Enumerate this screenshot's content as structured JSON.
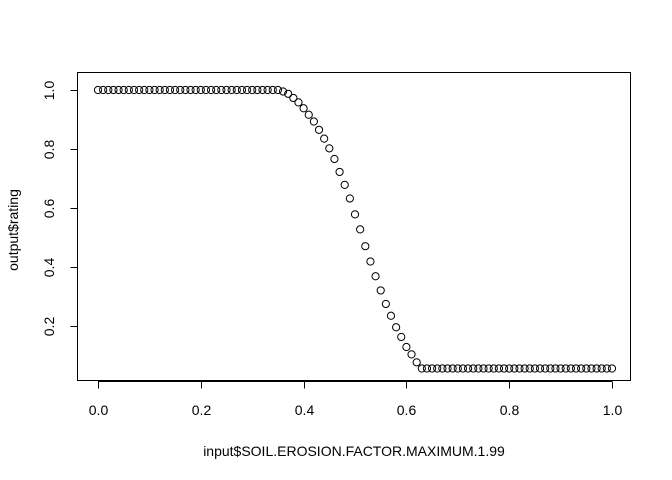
{
  "chart_data": {
    "type": "scatter",
    "title": "",
    "xlabel": "input$SOIL.EROSION.FACTOR.MAXIMUM.1.99",
    "ylabel": "output$rating",
    "xlim": [
      0.0,
      1.0
    ],
    "ylim": [
      0.05,
      1.0
    ],
    "grid": false,
    "point_style": "open-circle",
    "x_ticks": [
      "0.0",
      "0.2",
      "0.4",
      "0.6",
      "0.8",
      "1.0"
    ],
    "y_ticks": [
      "0.2",
      "0.4",
      "0.6",
      "0.8",
      "1.0"
    ],
    "x": [
      0.0,
      0.01,
      0.02,
      0.03,
      0.04,
      0.05,
      0.06,
      0.07,
      0.08,
      0.09,
      0.1,
      0.11,
      0.12,
      0.13,
      0.14,
      0.15,
      0.16,
      0.17,
      0.18,
      0.19,
      0.2,
      0.21,
      0.22,
      0.23,
      0.24,
      0.25,
      0.26,
      0.27,
      0.28,
      0.29,
      0.3,
      0.31,
      0.32,
      0.33,
      0.34,
      0.35,
      0.36,
      0.37,
      0.38,
      0.39,
      0.4,
      0.41,
      0.42,
      0.43,
      0.44,
      0.45,
      0.46,
      0.47,
      0.48,
      0.49,
      0.5,
      0.51,
      0.52,
      0.53,
      0.54,
      0.55,
      0.56,
      0.57,
      0.58,
      0.59,
      0.6,
      0.61,
      0.62,
      0.63,
      0.64,
      0.65,
      0.66,
      0.67,
      0.68,
      0.69,
      0.7,
      0.71,
      0.72,
      0.73,
      0.74,
      0.75,
      0.76,
      0.77,
      0.78,
      0.79,
      0.8,
      0.81,
      0.82,
      0.83,
      0.84,
      0.85,
      0.86,
      0.87,
      0.88,
      0.89,
      0.9,
      0.91,
      0.92,
      0.93,
      0.94,
      0.95,
      0.96,
      0.97,
      0.98,
      0.99,
      1.0
    ],
    "y": [
      1.0,
      1.0,
      1.0,
      1.0,
      1.0,
      1.0,
      1.0,
      1.0,
      1.0,
      1.0,
      1.0,
      1.0,
      1.0,
      1.0,
      1.0,
      1.0,
      1.0,
      1.0,
      1.0,
      1.0,
      1.0,
      1.0,
      1.0,
      1.0,
      1.0,
      1.0,
      1.0,
      1.0,
      1.0,
      1.0,
      1.0,
      1.0,
      1.0,
      1.0,
      1.0,
      1.0,
      0.995,
      0.987,
      0.973,
      0.958,
      0.938,
      0.916,
      0.893,
      0.865,
      0.835,
      0.802,
      0.766,
      0.722,
      0.678,
      0.632,
      0.578,
      0.527,
      0.47,
      0.418,
      0.368,
      0.32,
      0.274,
      0.234,
      0.195,
      0.162,
      0.128,
      0.103,
      0.076,
      0.055,
      0.055,
      0.055,
      0.055,
      0.055,
      0.055,
      0.055,
      0.055,
      0.055,
      0.055,
      0.055,
      0.055,
      0.055,
      0.055,
      0.055,
      0.055,
      0.055,
      0.055,
      0.055,
      0.055,
      0.055,
      0.055,
      0.055,
      0.055,
      0.055,
      0.055,
      0.055,
      0.055,
      0.055,
      0.055,
      0.055,
      0.055,
      0.055,
      0.055,
      0.055,
      0.055,
      0.055,
      0.055
    ]
  }
}
